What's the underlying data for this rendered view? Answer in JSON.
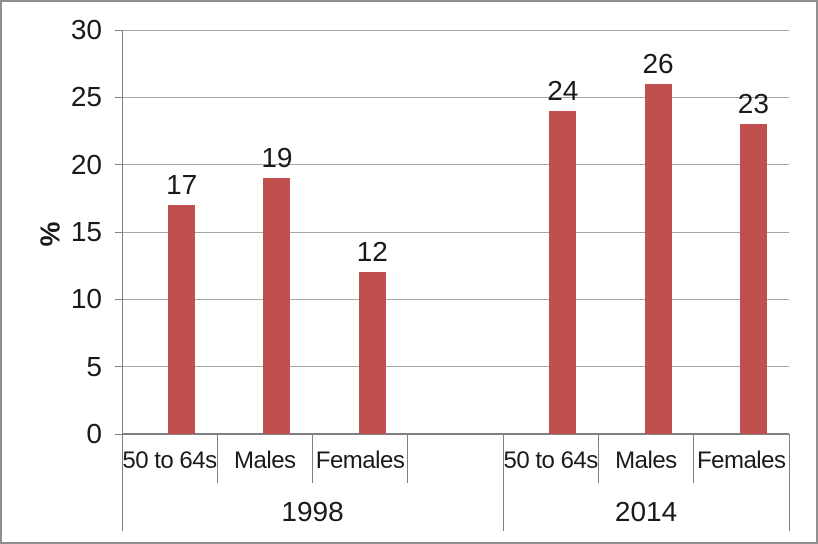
{
  "chart_data": {
    "type": "bar",
    "title": "",
    "xlabel": "",
    "ylabel": "%",
    "ylim": [
      0,
      30
    ],
    "yticks": [
      0,
      5,
      10,
      15,
      20,
      25,
      30
    ],
    "grid": true,
    "legend": "none",
    "value_labels_shown": true,
    "groups": [
      {
        "label": "1998",
        "categories": [
          "50 to 64s",
          "Males",
          "Females"
        ],
        "values": [
          17,
          19,
          12
        ]
      },
      {
        "label": "2014",
        "categories": [
          "50 to 64s",
          "Males",
          "Females"
        ],
        "values": [
          24,
          26,
          23
        ]
      }
    ],
    "colors": {
      "bar": "#C0504D",
      "gridline": "#A6A6A6",
      "axis": "#808080",
      "text": "#1a1a1a",
      "border": "#8f8f8f"
    }
  }
}
